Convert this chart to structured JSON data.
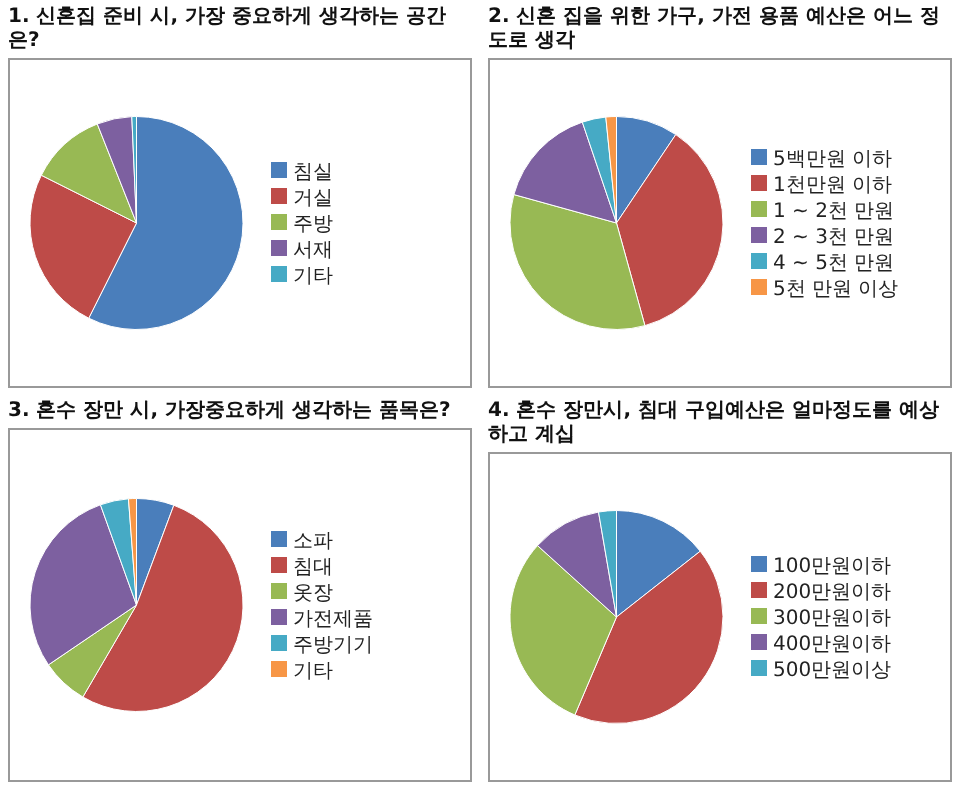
{
  "chart_data": [
    {
      "type": "pie",
      "title": "1. 신혼집 준비 시, 가장 중요하게 생각하는 공간은?",
      "categories": [
        "침실",
        "거실",
        "주방",
        "서재",
        "기타"
      ],
      "values": [
        57.4,
        25,
        11.6,
        5.3,
        0.7
      ],
      "colors": [
        "#4a7ebb",
        "#be4b48",
        "#98b954",
        "#7d60a0",
        "#46aac5"
      ],
      "legend": "right"
    },
    {
      "type": "pie",
      "title": "2. 신혼 집을 위한 가구, 가전 용품 예산은 어느 정도로 생각",
      "categories": [
        "5백만원 이하",
        "1천만원 이하",
        "1 ~ 2천 만원",
        "2 ~ 3천 만원",
        "4 ~ 5천 만원",
        "5천 만원 이상"
      ],
      "values": [
        9.4,
        36.3,
        33.6,
        15.5,
        3.6,
        1.6
      ],
      "colors": [
        "#4a7ebb",
        "#be4b48",
        "#98b954",
        "#7d60a0",
        "#46aac5",
        "#f79646"
      ],
      "legend": "right"
    },
    {
      "type": "pie",
      "title": "3. 혼수 장만 시, 가장중요하게 생각하는 품목은?",
      "categories": [
        "소파",
        "침대",
        "옷장",
        "가전제품",
        "주방기기",
        "기타"
      ],
      "values": [
        5.7,
        52.7,
        7.1,
        29.0,
        4.3,
        1.2
      ],
      "colors": [
        "#4a7ebb",
        "#be4b48",
        "#98b954",
        "#7d60a0",
        "#46aac5",
        "#f79646"
      ],
      "legend": "right"
    },
    {
      "type": "pie",
      "title": "4. 혼수 장만시, 침대 구입예산은 얼마정도를 예상하고 계십",
      "categories": [
        "100만원이하",
        "200만원이하",
        "300만원이하",
        "400만원이하",
        "500만원이상"
      ],
      "values": [
        14.4,
        42.0,
        30.3,
        10.6,
        2.7
      ],
      "colors": [
        "#4a7ebb",
        "#be4b48",
        "#98b954",
        "#7d60a0",
        "#46aac5"
      ],
      "legend": "right"
    }
  ]
}
